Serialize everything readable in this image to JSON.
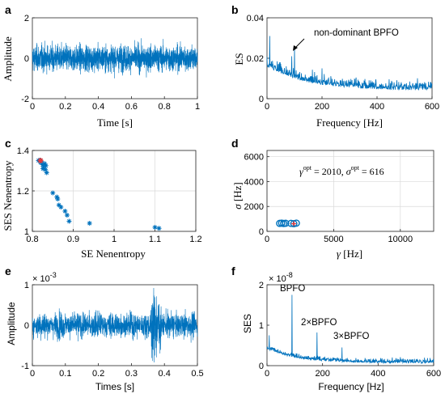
{
  "chart_data": [
    {
      "panel": "a",
      "type": "line",
      "xlabel": "Time [s]",
      "ylabel": "Amplitude",
      "xlim": [
        0,
        1
      ],
      "ylim": [
        -2,
        2
      ],
      "xticks": [
        "0",
        "0.2",
        "0.4",
        "0.6",
        "0.8",
        "1"
      ],
      "yticks": [
        "-2",
        "0",
        "2"
      ],
      "signal": {
        "kind": "noise",
        "samples": 2000,
        "amplitude": 1.9
      },
      "color": "#0072BD"
    },
    {
      "panel": "b",
      "type": "line",
      "xlabel": "Frequency [Hz]",
      "ylabel": "ES",
      "xlim": [
        0,
        600
      ],
      "ylim": [
        0,
        0.04
      ],
      "xticks": [
        "0",
        "200",
        "400",
        "600"
      ],
      "yticks": [
        "0",
        "0.02",
        "0.04"
      ],
      "annotations": [
        {
          "text": "non-dominant BPFO",
          "x": 100,
          "y": 0.026
        }
      ],
      "color": "#0072BD"
    },
    {
      "panel": "c",
      "type": "scatter",
      "xlabel": "SE Nenentropy",
      "ylabel": "SES Nenentropy",
      "xlim": [
        0.8,
        1.2
      ],
      "ylim": [
        1,
        1.4
      ],
      "xticks": [
        "0.8",
        "0.9",
        "1",
        "1.1",
        "1.2"
      ],
      "yticks": [
        "1",
        "1.2",
        "1.4"
      ],
      "grid": true,
      "points": [
        [
          0.815,
          1.35
        ],
        [
          0.82,
          1.34
        ],
        [
          0.822,
          1.345
        ],
        [
          0.825,
          1.33
        ],
        [
          0.828,
          1.32
        ],
        [
          0.83,
          1.335
        ],
        [
          0.826,
          1.31
        ],
        [
          0.832,
          1.305
        ],
        [
          0.835,
          1.29
        ],
        [
          0.833,
          1.325
        ],
        [
          0.818,
          1.352
        ],
        [
          0.85,
          1.19
        ],
        [
          0.86,
          1.17
        ],
        [
          0.862,
          1.16
        ],
        [
          0.865,
          1.13
        ],
        [
          0.87,
          1.12
        ],
        [
          0.88,
          1.1
        ],
        [
          0.885,
          1.08
        ],
        [
          0.89,
          1.05
        ],
        [
          0.94,
          1.04
        ],
        [
          1.1,
          1.02
        ],
        [
          1.11,
          1.015
        ]
      ],
      "highlight": [
        0.82,
        1.35
      ],
      "color": "#0072BD",
      "highlight_color": "#e63a3a"
    },
    {
      "panel": "d",
      "type": "scatter",
      "xlabel": "γ [Hz]",
      "ylabel": "σ [Hz]",
      "xlim": [
        0,
        12500
      ],
      "ylim": [
        0,
        6500
      ],
      "xticks": [
        "0",
        "5000",
        "10000"
      ],
      "yticks": [
        "0",
        "2000",
        "4000",
        "6000"
      ],
      "grid": true,
      "annotation": "γ^opt = 2010, σ^opt = 616",
      "annotation_parts": {
        "g": "γ",
        "opt": "opt",
        "eq1": " = 2010, ",
        "s": "σ",
        "eq2": " = 616"
      },
      "points": [
        [
          950,
          640
        ],
        [
          1100,
          660
        ],
        [
          1250,
          630
        ],
        [
          1400,
          650
        ],
        [
          1800,
          640
        ],
        [
          2200,
          660
        ]
      ],
      "highlight": [
        2010,
        616
      ],
      "color": "#0072BD",
      "highlight_color": "#e63a3a"
    },
    {
      "panel": "e",
      "type": "line",
      "xlabel": "Times [s]",
      "ylabel": "Amplitude",
      "xlim": [
        0,
        0.5
      ],
      "ylim": [
        -1,
        1
      ],
      "multiplier": "× 10-3",
      "xticks": [
        "0",
        "0.1",
        "0.2",
        "0.3",
        "0.4",
        "0.5"
      ],
      "yticks": [
        "-1",
        "0",
        "1"
      ],
      "signal": {
        "kind": "noise",
        "samples": 1500,
        "amplitude": 0.9
      },
      "color": "#0072BD"
    },
    {
      "panel": "f",
      "type": "line",
      "xlabel": "Frequency [Hz]",
      "ylabel": "SES",
      "xlim": [
        0,
        600
      ],
      "ylim": [
        0,
        2
      ],
      "multiplier": "× 10-8",
      "xticks": [
        "0",
        "200",
        "400",
        "600"
      ],
      "yticks": [
        "0",
        "1",
        "2"
      ],
      "annotations": [
        {
          "text": "BPFO",
          "x": 90,
          "y": 1.7
        },
        {
          "text": "2×BPFO",
          "x": 180,
          "y": 0.95
        },
        {
          "text": "3×BPFO",
          "x": 270,
          "y": 0.6
        }
      ],
      "color": "#0072BD"
    }
  ],
  "labels": {
    "a": "a",
    "b": "b",
    "c": "c",
    "d": "d",
    "e": "e",
    "f": "f",
    "a_x": "Time [s]",
    "a_y": "Amplitude",
    "b_x": "Frequency [Hz]",
    "b_y": "ES",
    "b_ann": "non-dominant BPFO",
    "c_x": "SE Nenentropy",
    "c_y": "SES Nenentropy",
    "d_x_sym": "γ",
    "d_x_unit": " [Hz]",
    "d_y_sym": "σ",
    "d_y_unit": " [Hz]",
    "e_x": "Times [s]",
    "e_y": "Amplitude",
    "e_mult": "× 10",
    "e_exp": "-3",
    "f_x": "Frequency [Hz]",
    "f_y": "SES",
    "f_mult": "× 10",
    "f_exp": "-8",
    "f_ann1": "BPFO",
    "f_ann2": "2×BPFO",
    "f_ann3": "3×BPFO"
  }
}
